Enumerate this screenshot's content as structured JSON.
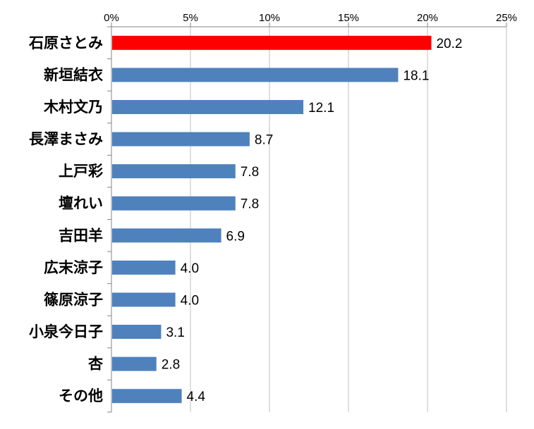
{
  "colors": {
    "highlight": "#ff0000",
    "bar": "#4f81bd",
    "axis": "#868686",
    "grid": "#bfbfbf"
  },
  "chart_data": {
    "type": "bar",
    "orientation": "horizontal",
    "title": "",
    "xlabel": "",
    "ylabel": "",
    "xlim": [
      0,
      25
    ],
    "x_ticks": [
      "0%",
      "5%",
      "10%",
      "15%",
      "20%",
      "25%"
    ],
    "x_tick_values": [
      0,
      5,
      10,
      15,
      20,
      25
    ],
    "x_axis_position": "top",
    "grid": "vertical major",
    "legend": "none",
    "categories": [
      "石原さとみ",
      "新垣結衣",
      "木村文乃",
      "長澤まさみ",
      "上戸彩",
      "壇れい",
      "吉田羊",
      "広末涼子",
      "篠原涼子",
      "小泉今日子",
      "杏",
      "その他"
    ],
    "values": [
      20.2,
      18.1,
      12.1,
      8.7,
      7.8,
      7.8,
      6.9,
      4.0,
      4.0,
      3.1,
      2.8,
      4.4
    ],
    "value_labels": [
      "20.2",
      "18.1",
      "12.1",
      "8.7",
      "7.8",
      "7.8",
      "6.9",
      "4.0",
      "4.0",
      "3.1",
      "2.8",
      "4.4"
    ],
    "highlight_index": 0
  }
}
